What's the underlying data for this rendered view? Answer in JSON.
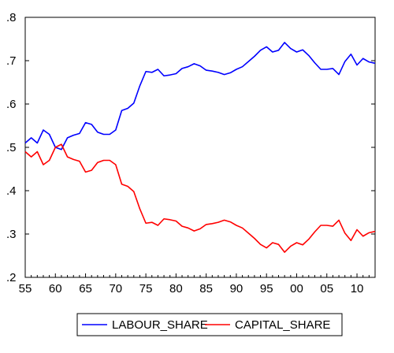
{
  "chart_data": {
    "type": "line",
    "title": "",
    "xlabel": "",
    "ylabel": "",
    "x": [
      1955,
      1956,
      1957,
      1958,
      1959,
      1960,
      1961,
      1962,
      1963,
      1964,
      1965,
      1966,
      1967,
      1968,
      1969,
      1970,
      1971,
      1972,
      1973,
      1974,
      1975,
      1976,
      1977,
      1978,
      1979,
      1980,
      1981,
      1982,
      1983,
      1984,
      1985,
      1986,
      1987,
      1988,
      1989,
      1990,
      1991,
      1992,
      1993,
      1994,
      1995,
      1996,
      1997,
      1998,
      1999,
      2000,
      2001,
      2002,
      2003,
      2004,
      2005,
      2006,
      2007,
      2008,
      2009,
      2010,
      2011,
      2012,
      2013
    ],
    "xlim": [
      1955,
      2013
    ],
    "ylim": [
      0.2,
      0.8
    ],
    "x_ticks": [
      {
        "value": 1955,
        "label": "55"
      },
      {
        "value": 1960,
        "label": "60"
      },
      {
        "value": 1965,
        "label": "65"
      },
      {
        "value": 1970,
        "label": "70"
      },
      {
        "value": 1975,
        "label": "75"
      },
      {
        "value": 1980,
        "label": "80"
      },
      {
        "value": 1985,
        "label": "85"
      },
      {
        "value": 1990,
        "label": "90"
      },
      {
        "value": 1995,
        "label": "95"
      },
      {
        "value": 2000,
        "label": "00"
      },
      {
        "value": 2005,
        "label": "05"
      },
      {
        "value": 2010,
        "label": "10"
      }
    ],
    "y_ticks": [
      {
        "value": 0.2,
        "label": ".2"
      },
      {
        "value": 0.3,
        "label": ".3"
      },
      {
        "value": 0.4,
        "label": ".4"
      },
      {
        "value": 0.5,
        "label": ".5"
      },
      {
        "value": 0.6,
        "label": ".6"
      },
      {
        "value": 0.7,
        "label": ".7"
      },
      {
        "value": 0.8,
        "label": ".8"
      }
    ],
    "grid": false,
    "legend_position": "bottom",
    "series": [
      {
        "name": "LABOUR_SHARE",
        "color": "#0000ff",
        "values": [
          0.51,
          0.522,
          0.51,
          0.54,
          0.53,
          0.5,
          0.495,
          0.522,
          0.528,
          0.532,
          0.557,
          0.553,
          0.535,
          0.53,
          0.53,
          0.54,
          0.585,
          0.59,
          0.602,
          0.642,
          0.675,
          0.673,
          0.68,
          0.665,
          0.667,
          0.67,
          0.682,
          0.686,
          0.693,
          0.688,
          0.678,
          0.676,
          0.673,
          0.668,
          0.672,
          0.68,
          0.686,
          0.698,
          0.71,
          0.724,
          0.732,
          0.72,
          0.724,
          0.742,
          0.728,
          0.72,
          0.725,
          0.712,
          0.695,
          0.68,
          0.68,
          0.682,
          0.668,
          0.698,
          0.715,
          0.69,
          0.705,
          0.697,
          0.694
        ]
      },
      {
        "name": "CAPITAL_SHARE",
        "color": "#ff0000",
        "values": [
          0.49,
          0.478,
          0.49,
          0.46,
          0.47,
          0.5,
          0.507,
          0.478,
          0.472,
          0.468,
          0.443,
          0.447,
          0.465,
          0.47,
          0.47,
          0.46,
          0.415,
          0.41,
          0.398,
          0.358,
          0.325,
          0.327,
          0.32,
          0.335,
          0.333,
          0.33,
          0.318,
          0.314,
          0.307,
          0.312,
          0.322,
          0.324,
          0.327,
          0.332,
          0.328,
          0.32,
          0.314,
          0.302,
          0.29,
          0.276,
          0.268,
          0.28,
          0.276,
          0.258,
          0.272,
          0.28,
          0.275,
          0.288,
          0.305,
          0.32,
          0.32,
          0.318,
          0.332,
          0.302,
          0.285,
          0.31,
          0.295,
          0.303,
          0.306
        ]
      }
    ]
  }
}
